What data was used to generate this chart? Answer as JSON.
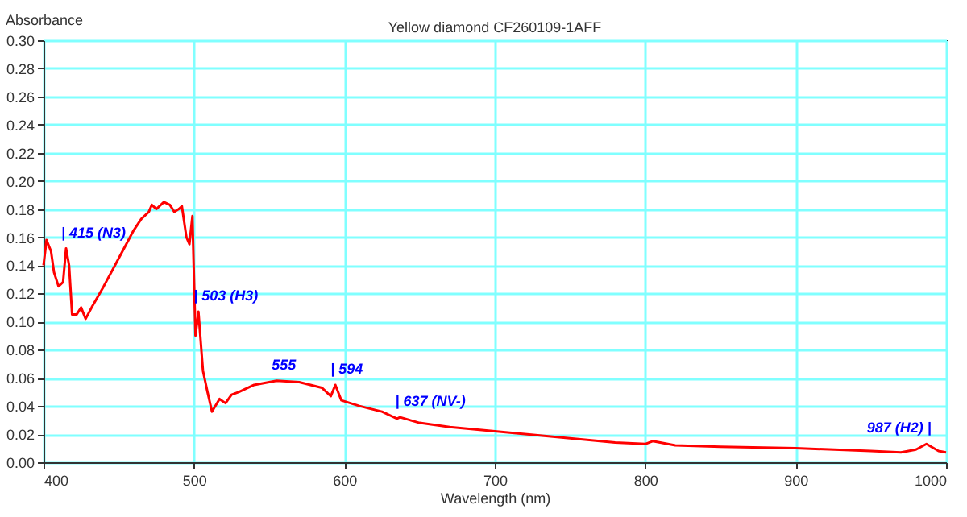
{
  "chart_data": {
    "type": "line",
    "title": "Yellow diamond CF260109-1AFF",
    "xlabel": "Wavelength (nm)",
    "ylabel": "Absorbance",
    "x": [
      400,
      402,
      405,
      407,
      410,
      413,
      415,
      417,
      419,
      422,
      425,
      428,
      432,
      440,
      450,
      460,
      465,
      470,
      472,
      475,
      480,
      484,
      487,
      490,
      492,
      495,
      497,
      499,
      501,
      503,
      506,
      509,
      512,
      517,
      521,
      525,
      530,
      540,
      555,
      570,
      585,
      591,
      594,
      598,
      610,
      625,
      635,
      637,
      650,
      670,
      700,
      730,
      750,
      780,
      800,
      805,
      820,
      850,
      900,
      950,
      970,
      980,
      987,
      995,
      1000
    ],
    "series": [
      {
        "color": "#ff0000",
        "values": [
          0.14,
          0.158,
          0.15,
          0.135,
          0.125,
          0.128,
          0.152,
          0.14,
          0.105,
          0.105,
          0.11,
          0.102,
          0.11,
          0.125,
          0.145,
          0.165,
          0.173,
          0.178,
          0.183,
          0.18,
          0.185,
          0.183,
          0.178,
          0.18,
          0.182,
          0.16,
          0.155,
          0.175,
          0.09,
          0.107,
          0.065,
          0.05,
          0.036,
          0.045,
          0.042,
          0.048,
          0.05,
          0.055,
          0.058,
          0.057,
          0.053,
          0.047,
          0.055,
          0.044,
          0.04,
          0.036,
          0.031,
          0.032,
          0.028,
          0.025,
          0.022,
          0.019,
          0.017,
          0.014,
          0.013,
          0.015,
          0.012,
          0.011,
          0.01,
          0.008,
          0.007,
          0.009,
          0.013,
          0.008,
          0.007
        ]
      }
    ],
    "xlim": [
      400,
      1000
    ],
    "xticks": [
      400,
      500,
      600,
      700,
      800,
      900,
      1000
    ],
    "ylim": [
      0,
      0.3
    ],
    "yticks": [
      {
        "value": 0,
        "label": "0.00"
      },
      {
        "value": 0.02,
        "label": "0.02"
      },
      {
        "value": 0.04,
        "label": "0.04"
      },
      {
        "value": 0.06,
        "label": "0.06"
      },
      {
        "value": 0.08,
        "label": "0.08"
      },
      {
        "value": 0.1,
        "label": "0.10"
      },
      {
        "value": 0.12,
        "label": "0.12"
      },
      {
        "value": 0.14,
        "label": "0.14"
      },
      {
        "value": 0.16,
        "label": "0.16"
      },
      {
        "value": 0.18,
        "label": "0.18"
      },
      {
        "value": 0.2,
        "label": "0.20"
      },
      {
        "value": 0.22,
        "label": "0.22"
      },
      {
        "value": 0.24,
        "label": "0.24"
      },
      {
        "value": 0.26,
        "label": "0.26"
      },
      {
        "value": 0.28,
        "label": "0.28"
      },
      {
        "value": 0.3,
        "label": "0.30"
      }
    ],
    "grid": true,
    "annotations": [
      {
        "text": "| 415 (N3)",
        "x": 415,
        "y": 0.152
      },
      {
        "text": "| 503 (H3)",
        "x": 503,
        "y": 0.107
      },
      {
        "text": "555",
        "x": 555,
        "y": 0.058
      },
      {
        "text": "| 594",
        "x": 594,
        "y": 0.055
      },
      {
        "text": "| 637 (NV-)",
        "x": 637,
        "y": 0.032
      },
      {
        "text": "987 (H2) |",
        "x": 987,
        "y": 0.013
      }
    ]
  }
}
